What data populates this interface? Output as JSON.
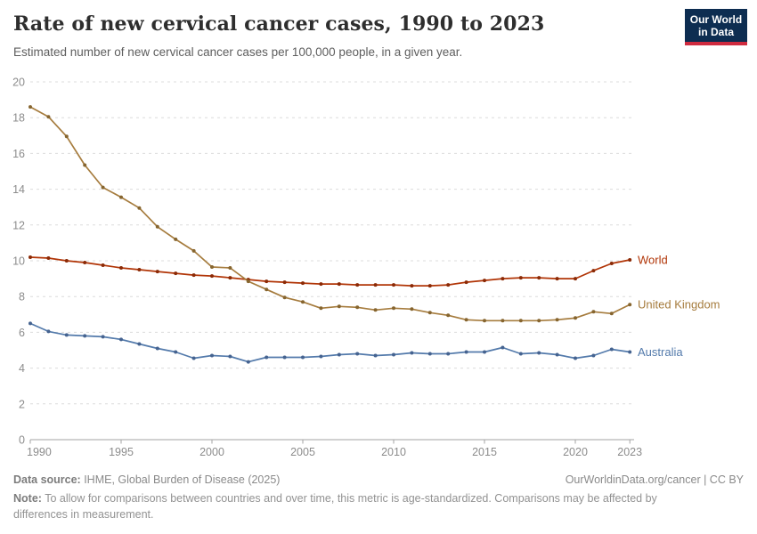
{
  "header": {
    "title": "Rate of new cervical cancer cases, 1990 to 2023",
    "subtitle": "Estimated number of new cervical cancer cases per 100,000 people, in a given year.",
    "logo": {
      "line1": "Our World",
      "line2": "in Data",
      "bg_color": "#0d2d51",
      "bar_color": "#cf2b3f"
    }
  },
  "chart_data": {
    "type": "line",
    "title": "Rate of new cervical cancer cases, 1990 to 2023",
    "xlabel": "",
    "ylabel": "",
    "x": [
      1990,
      1991,
      1992,
      1993,
      1994,
      1995,
      1996,
      1997,
      1998,
      1999,
      2000,
      2001,
      2002,
      2003,
      2004,
      2005,
      2006,
      2007,
      2008,
      2009,
      2010,
      2011,
      2012,
      2013,
      2014,
      2015,
      2016,
      2017,
      2018,
      2019,
      2020,
      2021,
      2022,
      2023
    ],
    "series": [
      {
        "name": "World",
        "color": "#b13507",
        "marker_color": "#8b2a06",
        "values": [
          10.2,
          10.15,
          10.0,
          9.9,
          9.75,
          9.6,
          9.5,
          9.4,
          9.3,
          9.2,
          9.15,
          9.05,
          8.95,
          8.85,
          8.8,
          8.75,
          8.7,
          8.7,
          8.65,
          8.65,
          8.65,
          8.6,
          8.6,
          8.65,
          8.8,
          8.9,
          9.0,
          9.05,
          9.05,
          9.0,
          9.0,
          9.45,
          9.85,
          10.05
        ]
      },
      {
        "name": "United Kingdom",
        "color": "#a67c3e",
        "marker_color": "#86652f",
        "values": [
          18.6,
          18.05,
          16.95,
          15.35,
          14.1,
          13.55,
          12.95,
          11.9,
          11.2,
          10.55,
          9.65,
          9.6,
          8.85,
          8.4,
          7.95,
          7.7,
          7.35,
          7.45,
          7.4,
          7.25,
          7.35,
          7.3,
          7.1,
          6.95,
          6.7,
          6.65,
          6.65,
          6.65,
          6.65,
          6.7,
          6.8,
          7.15,
          7.05,
          7.55
        ]
      },
      {
        "name": "Australia",
        "color": "#537aab",
        "marker_color": "#456390",
        "values": [
          6.5,
          6.05,
          5.85,
          5.8,
          5.75,
          5.6,
          5.35,
          5.1,
          4.9,
          4.55,
          4.7,
          4.65,
          4.35,
          4.6,
          4.6,
          4.6,
          4.65,
          4.75,
          4.8,
          4.7,
          4.75,
          4.85,
          4.8,
          4.8,
          4.9,
          4.9,
          5.15,
          4.8,
          4.85,
          4.75,
          4.55,
          4.7,
          5.05,
          4.9
        ]
      }
    ],
    "xticks": [
      1990,
      1995,
      2000,
      2005,
      2010,
      2015,
      2020,
      2023
    ],
    "ylim": [
      0,
      20
    ],
    "ytick_step": 2,
    "grid": "dashed-horizontal",
    "legend_position": "end-of-line-labels",
    "axis_color": "#a3a3a3",
    "grid_color": "#dcdcdc",
    "tick_label_color": "#8c8c8c"
  },
  "footer": {
    "source_label": "Data source:",
    "source_text": " IHME, Global Burden of Disease (2025)",
    "citation": "OurWorldinData.org/cancer | CC BY",
    "note_label": "Note:",
    "note_text": " To allow for comparisons between countries and over time, this metric is age-standardized. Comparisons may be affected by differences in measurement."
  }
}
